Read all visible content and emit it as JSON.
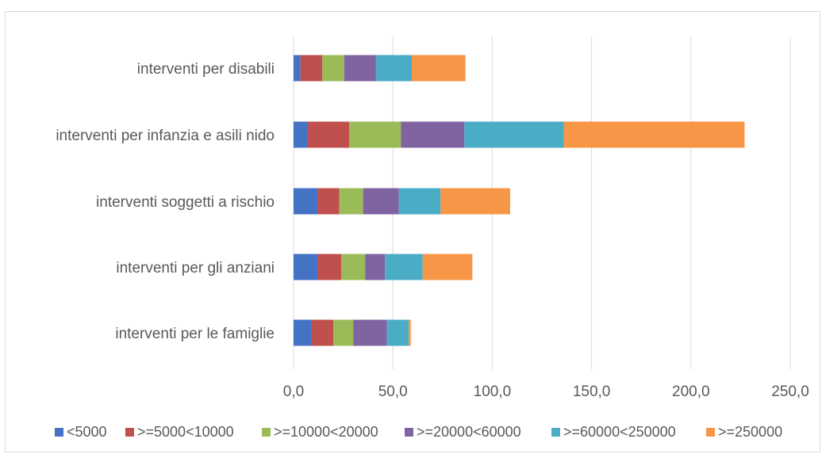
{
  "chart_data": {
    "type": "bar",
    "orientation": "horizontal",
    "stacked": true,
    "categories": [
      "interventi per disabili",
      "interventi per infanzia e asili nido",
      "interventi soggetti a rischio",
      "interventi per gli anziani",
      "interventi per le famiglie"
    ],
    "series": [
      {
        "name": "<5000",
        "color": "#4472C4",
        "values": [
          3.5,
          7.0,
          12.0,
          12.0,
          9.0
        ]
      },
      {
        "name": ">=5000<10000",
        "color": "#C0504D",
        "values": [
          11.0,
          21.0,
          11.0,
          12.0,
          11.0
        ]
      },
      {
        "name": ">=10000<20000",
        "color": "#9BBB59",
        "values": [
          11.0,
          26.0,
          12.0,
          12.0,
          10.0
        ]
      },
      {
        "name": ">=20000<60000",
        "color": "#8064A2",
        "values": [
          16.0,
          32.0,
          18.0,
          10.0,
          17.0
        ]
      },
      {
        "name": ">=60000<250000",
        "color": "#4BACC6",
        "values": [
          18.0,
          50.0,
          21.0,
          19.0,
          11.0
        ]
      },
      {
        "name": ">=250000",
        "color": "#F79646",
        "values": [
          27.0,
          91.0,
          35.0,
          25.0,
          1.0
        ]
      }
    ],
    "x_ticks": [
      "0,0",
      "50,0",
      "100,0",
      "150,0",
      "200,0",
      "250,0"
    ],
    "xlim": [
      0,
      250
    ],
    "title": "",
    "xlabel": "",
    "ylabel": "",
    "grid": "vertical",
    "legend": "bottom"
  }
}
